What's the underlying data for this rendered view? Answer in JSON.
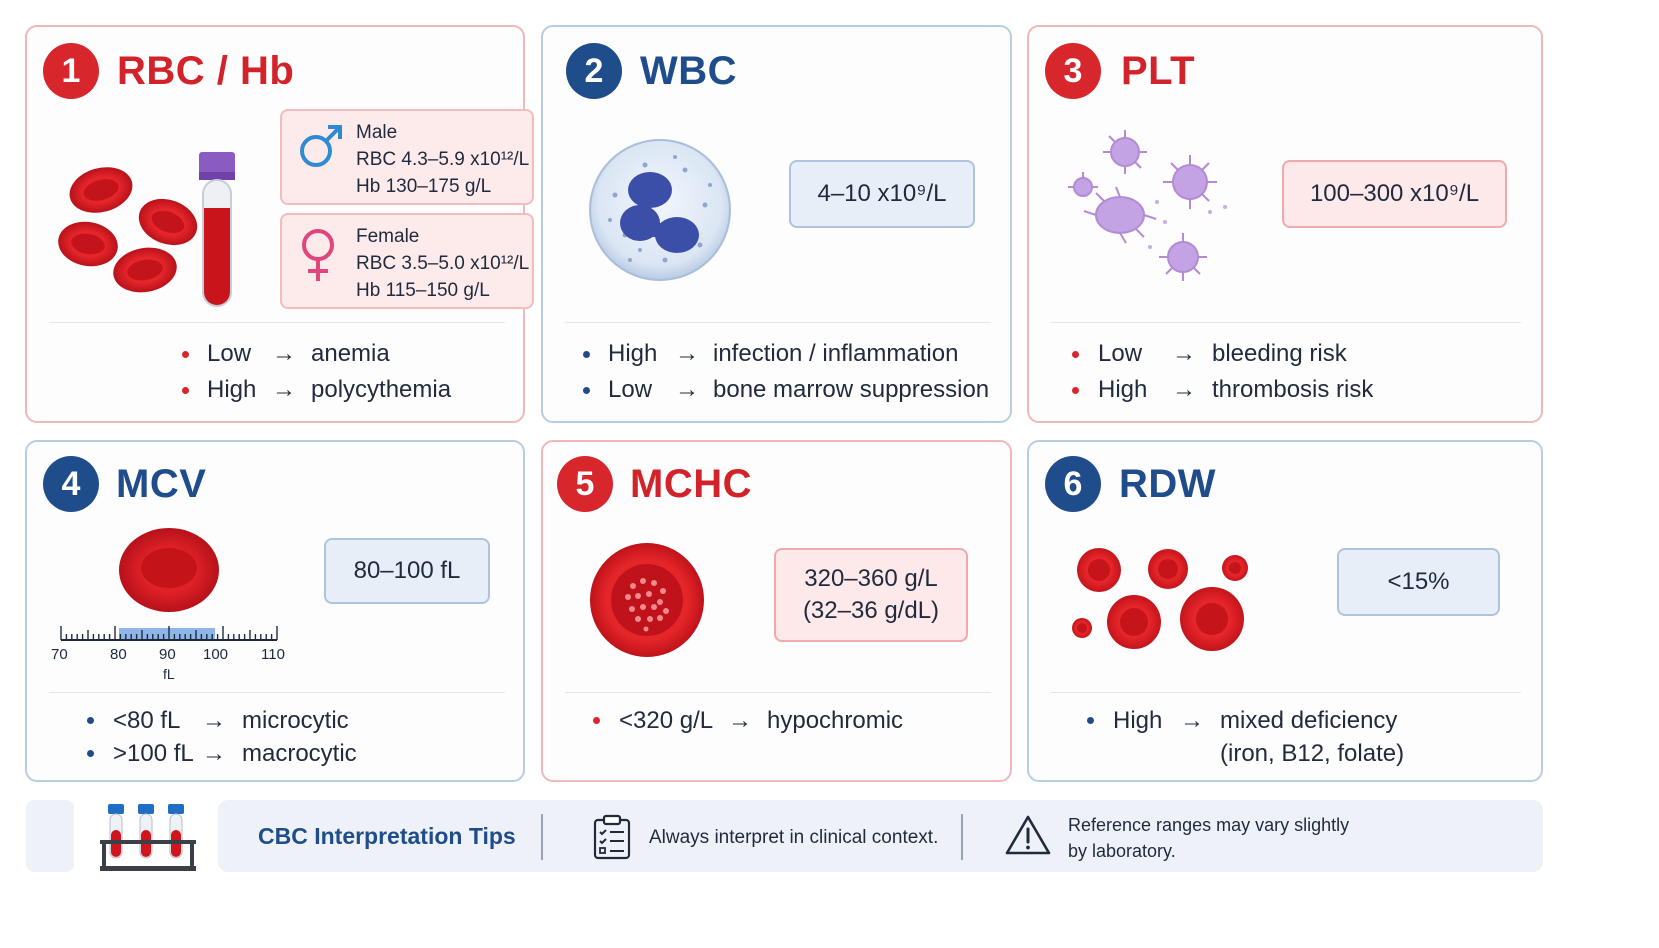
{
  "cards": {
    "rbc": {
      "number": "1",
      "title": "RBC / Hb",
      "male": {
        "label": "Male",
        "rbc": "RBC 4.3–5.9 x10¹²/L",
        "hb": "Hb 130–175 g/L"
      },
      "female": {
        "label": "Female",
        "rbc": "RBC 3.5–5.0 x10¹²/L",
        "hb": "Hb 115–150 g/L"
      },
      "bullets": [
        {
          "cond": "Low",
          "arrow": "→",
          "result": "anemia"
        },
        {
          "cond": "High",
          "arrow": "→",
          "result": "polycythemia"
        }
      ]
    },
    "wbc": {
      "number": "2",
      "title": "WBC",
      "range": "4–10 x10⁹/L",
      "bullets": [
        {
          "cond": "High",
          "arrow": "→",
          "result": "infection / inflammation"
        },
        {
          "cond": "Low",
          "arrow": "→",
          "result": "bone marrow suppression"
        }
      ]
    },
    "plt": {
      "number": "3",
      "title": "PLT",
      "range": "100–300 x10⁹/L",
      "bullets": [
        {
          "cond": "Low",
          "arrow": "→",
          "result": "bleeding risk"
        },
        {
          "cond": "High",
          "arrow": "→",
          "result": "thrombosis risk"
        }
      ]
    },
    "mcv": {
      "number": "4",
      "title": "MCV",
      "range": "80–100 fL",
      "ruler": {
        "ticks": [
          "70",
          "80",
          "90",
          "100",
          "110"
        ],
        "unit": "fL"
      },
      "bullets": [
        {
          "cond": "<80 fL",
          "arrow": "→",
          "result": "microcytic"
        },
        {
          "cond": ">100 fL",
          "arrow": "→",
          "result": "macrocytic"
        }
      ]
    },
    "mchc": {
      "number": "5",
      "title": "MCHC",
      "range_line1": "320–360 g/L",
      "range_line2": "(32–36 g/dL)",
      "bullets": [
        {
          "cond": "<320 g/L",
          "arrow": "→",
          "result": "hypochromic"
        }
      ]
    },
    "rdw": {
      "number": "6",
      "title": "RDW",
      "range": "<15%",
      "bullets": [
        {
          "cond": "High",
          "arrow": "→",
          "result": "mixed deficiency",
          "result2": "(iron, B12, folate)"
        }
      ]
    }
  },
  "footer": {
    "title": "CBC Interpretation Tips",
    "tip1": "Always interpret in clinical context.",
    "tip2_line1": "Reference ranges may vary slightly",
    "tip2_line2": "by laboratory."
  },
  "colors": {
    "red": "#d7262c",
    "blue": "#1f4d8c",
    "red_box": "#fde9ea",
    "blue_box": "#e7eef8"
  },
  "icons": [
    "red-blood-cells-icon",
    "blood-tube-icon",
    "male-icon",
    "female-icon",
    "white-blood-cell-icon",
    "platelets-icon",
    "rbc-size-icon",
    "ruler-icon",
    "mchc-cell-icon",
    "rdw-cells-icon",
    "tube-rack-icon",
    "clipboard-icon",
    "warning-icon"
  ]
}
